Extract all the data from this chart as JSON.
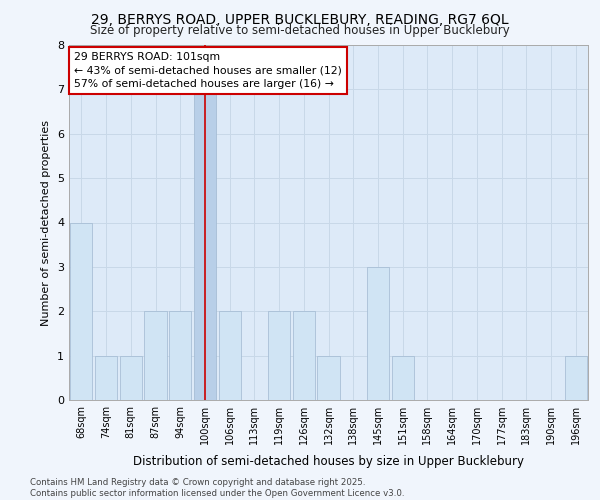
{
  "title_line1": "29, BERRYS ROAD, UPPER BUCKLEBURY, READING, RG7 6QL",
  "title_line2": "Size of property relative to semi-detached houses in Upper Bucklebury",
  "xlabel": "Distribution of semi-detached houses by size in Upper Bucklebury",
  "ylabel": "Number of semi-detached properties",
  "categories": [
    "68sqm",
    "74sqm",
    "81sqm",
    "87sqm",
    "94sqm",
    "100sqm",
    "106sqm",
    "113sqm",
    "119sqm",
    "126sqm",
    "132sqm",
    "138sqm",
    "145sqm",
    "151sqm",
    "158sqm",
    "164sqm",
    "170sqm",
    "177sqm",
    "183sqm",
    "190sqm",
    "196sqm"
  ],
  "values": [
    4,
    1,
    1,
    2,
    2,
    7,
    2,
    0,
    2,
    2,
    1,
    0,
    3,
    1,
    0,
    0,
    0,
    0,
    0,
    0,
    1
  ],
  "highlight_index": 5,
  "highlight_color": "#b8cfe8",
  "bar_color": "#d0e4f4",
  "bar_edge_color": "#a0b8d0",
  "highlight_line_color": "#cc0000",
  "annotation_text": "29 BERRYS ROAD: 101sqm\n← 43% of semi-detached houses are smaller (12)\n57% of semi-detached houses are larger (16) →",
  "annotation_box_color": "#ffffff",
  "annotation_box_edge": "#cc0000",
  "ylim": [
    0,
    8
  ],
  "yticks": [
    0,
    1,
    2,
    3,
    4,
    5,
    6,
    7,
    8
  ],
  "footer_text": "Contains HM Land Registry data © Crown copyright and database right 2025.\nContains public sector information licensed under the Open Government Licence v3.0.",
  "grid_color": "#c8d8e8",
  "background_color": "#ddeaf8",
  "fig_bg_color": "#f0f5fc"
}
